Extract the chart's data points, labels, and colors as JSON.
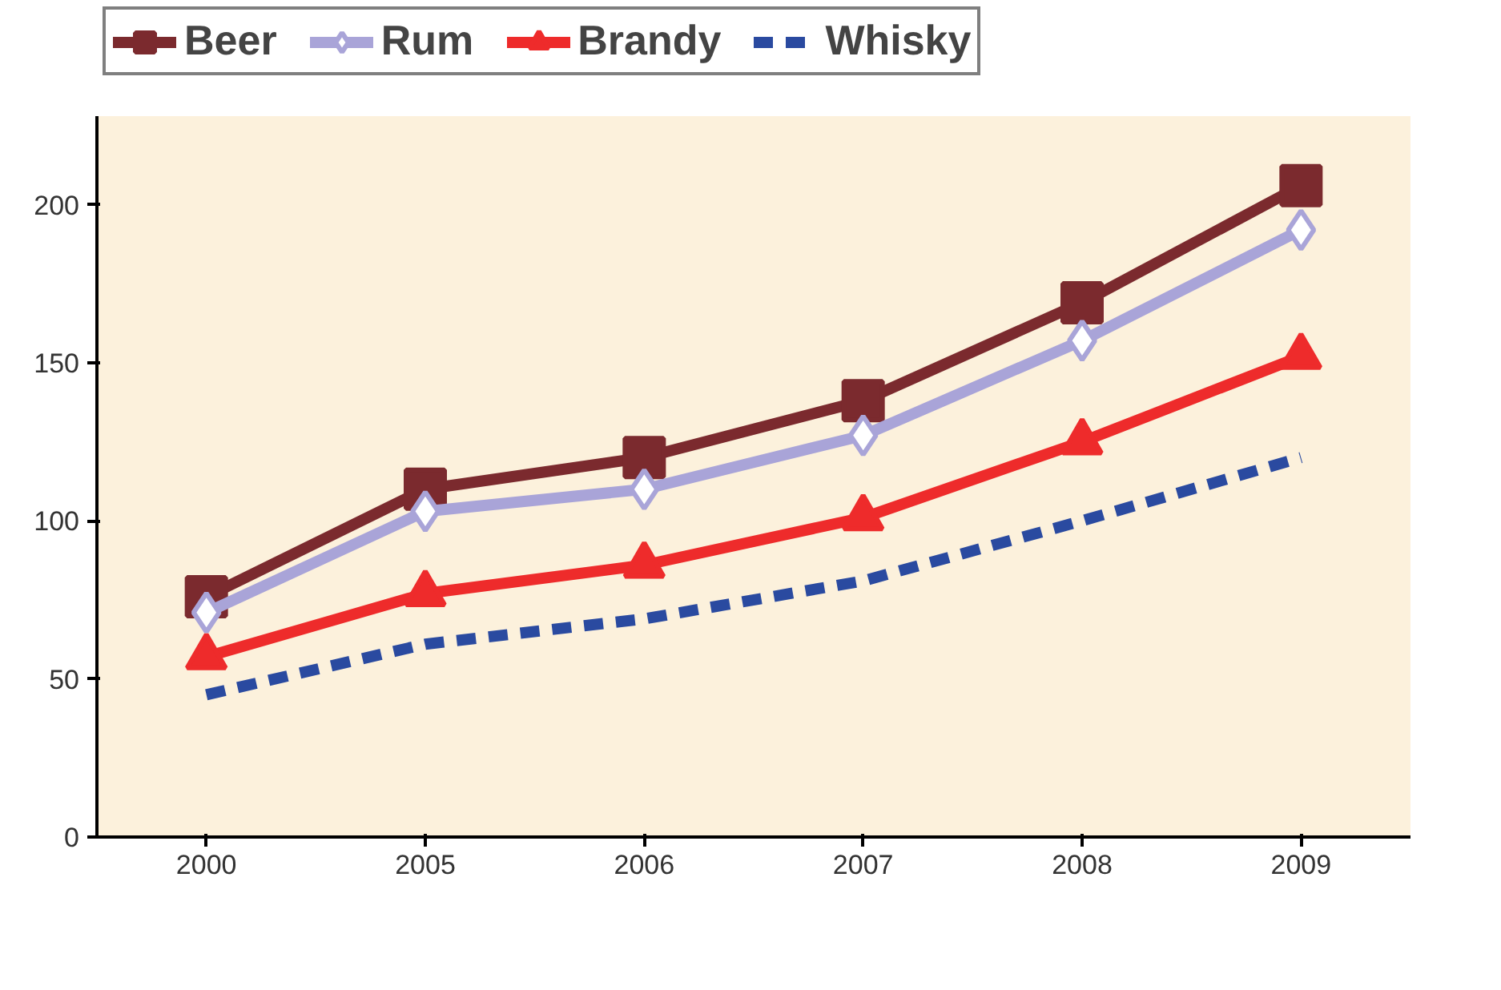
{
  "chart_data": {
    "type": "line",
    "categories": [
      "2000",
      "2005",
      "2006",
      "2007",
      "2008",
      "2009"
    ],
    "series": [
      {
        "name": "Beer",
        "color": "#7b2a2e",
        "marker": "square",
        "values": [
          76,
          110,
          120,
          138,
          169,
          206
        ]
      },
      {
        "name": "Rum",
        "color": "#a9a4d8",
        "marker": "diamond",
        "values": [
          71,
          103,
          110,
          127,
          157,
          192
        ]
      },
      {
        "name": "Brandy",
        "color": "#ee2b2b",
        "marker": "triangle",
        "values": [
          57,
          77,
          86,
          101,
          125,
          152
        ]
      },
      {
        "name": "Whisky",
        "color": "#2a4aa0",
        "marker": "none",
        "line_style": "dashed",
        "values": [
          45,
          61,
          69,
          81,
          100,
          120
        ]
      }
    ],
    "ylim": [
      0,
      228
    ],
    "yticks": [
      0,
      50,
      100,
      150,
      200
    ],
    "grid": false,
    "legend": "top"
  }
}
